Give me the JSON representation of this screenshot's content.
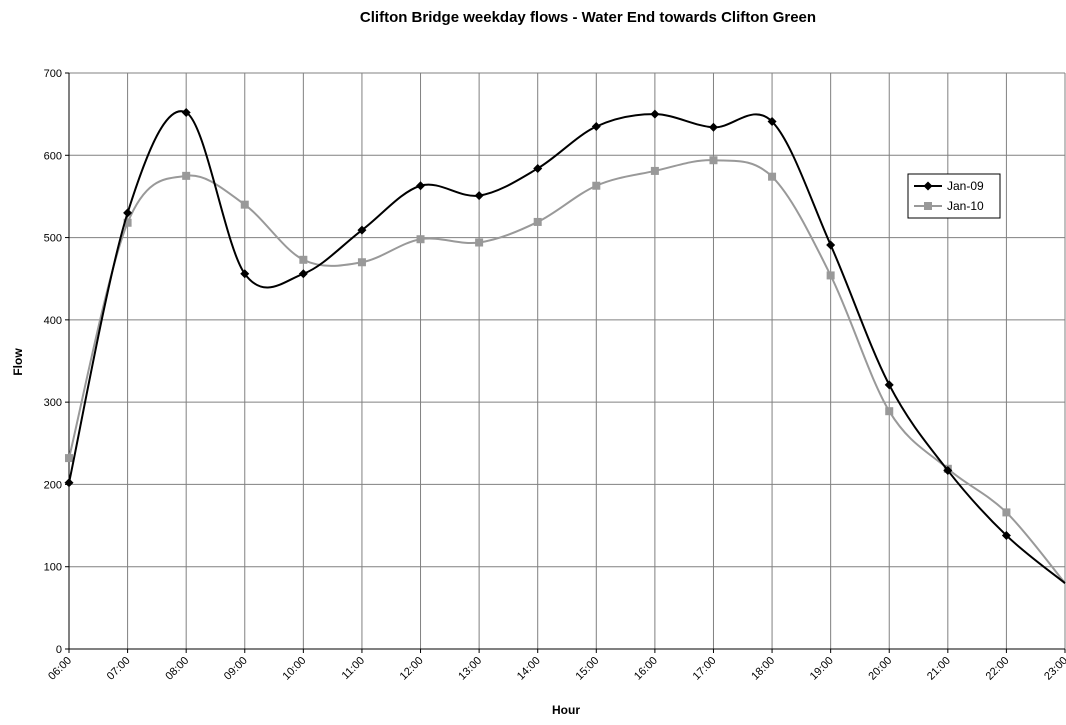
{
  "chart_data": {
    "type": "line",
    "title": "Clifton Bridge weekday flows - Water End towards Clifton Green",
    "xlabel": "Hour",
    "ylabel": "Flow",
    "categories": [
      "06:00",
      "07:00",
      "08:00",
      "09:00",
      "10:00",
      "11:00",
      "12:00",
      "13:00",
      "14:00",
      "15:00",
      "16:00",
      "17:00",
      "18:00",
      "19:00",
      "20:00",
      "21:00",
      "22:00",
      "23:00"
    ],
    "ylim": [
      0,
      700
    ],
    "yticks": [
      0,
      100,
      200,
      300,
      400,
      500,
      600,
      700
    ],
    "grid": true,
    "smoothed": true,
    "legend_position": "right",
    "series": [
      {
        "name": "Jan-09",
        "color": "#000000",
        "marker": "diamond",
        "values": [
          202,
          530,
          652,
          456,
          456,
          509,
          563,
          551,
          584,
          635,
          650,
          634,
          641,
          491,
          321,
          217,
          138,
          80
        ]
      },
      {
        "name": "Jan-10",
        "color": "#999999",
        "marker": "square",
        "values": [
          232,
          518,
          575,
          540,
          473,
          470,
          498,
          494,
          519,
          563,
          581,
          594,
          574,
          454,
          289,
          219,
          166,
          80
        ]
      }
    ]
  }
}
